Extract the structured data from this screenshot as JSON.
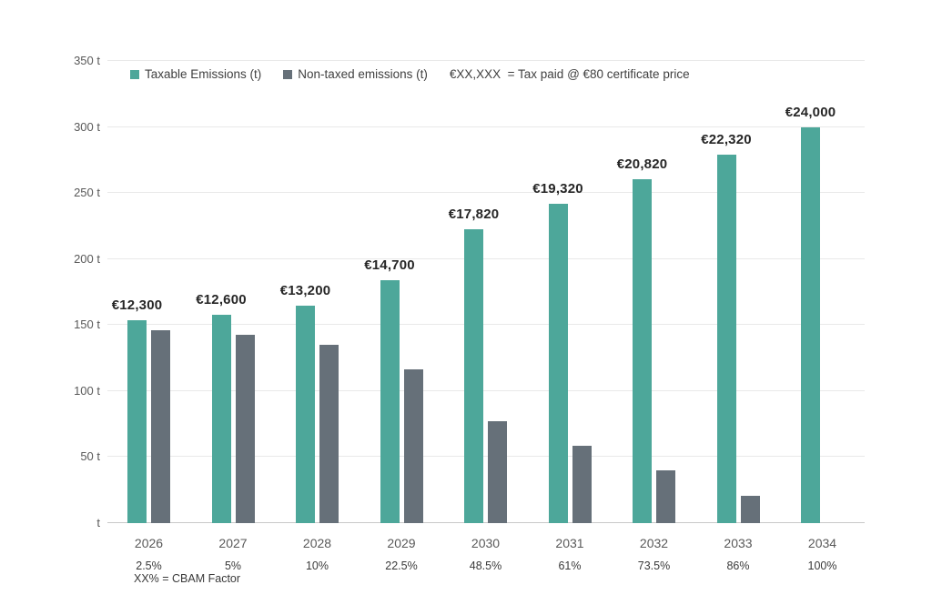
{
  "chart_data": {
    "type": "bar",
    "title": "",
    "categories": [
      "2026",
      "2027",
      "2028",
      "2029",
      "2030",
      "2031",
      "2032",
      "2033",
      "2034"
    ],
    "cbam_factors": [
      "2.5%",
      "5%",
      "10%",
      "22.5%",
      "48.5%",
      "61%",
      "73.5%",
      "86%",
      "100%"
    ],
    "series": [
      {
        "name": "Taxable Emissions (t)",
        "color": "#4DA79A",
        "values": [
          153.75,
          157.5,
          165,
          183.75,
          222.75,
          241.5,
          260.25,
          279,
          300
        ]
      },
      {
        "name": "Non-taxed emissions (t)",
        "color": "#667079",
        "values": [
          146.25,
          142.5,
          135,
          116.25,
          77.25,
          58.5,
          39.75,
          21,
          0
        ]
      }
    ],
    "bar_labels": [
      "€12,300",
      "€12,600",
      "€13,200",
      "€14,700",
      "€17,820",
      "€19,320",
      "€20,820",
      "€22,320",
      "€24,000"
    ],
    "legend_note": "€XX,XXX  = Tax paid @ €80 certificate price",
    "footnote": "XX% = CBAM Factor",
    "y_axis": {
      "unit": "t",
      "ylim": [
        0,
        350
      ],
      "ticks": [
        {
          "value": 350,
          "label": "350 t"
        },
        {
          "value": 300,
          "label": "300 t"
        },
        {
          "value": 250,
          "label": "250 t"
        },
        {
          "value": 200,
          "label": "200 t"
        },
        {
          "value": 150,
          "label": "150 t"
        },
        {
          "value": 100,
          "label": "100 t"
        },
        {
          "value": 50,
          "label": "50 t"
        },
        {
          "value": 0,
          "label": "t"
        }
      ]
    },
    "grid": "horizontal",
    "legend_position": "top",
    "colors": {
      "gridline": "#E9E9E9",
      "baseline": "#C8C8C8"
    }
  }
}
